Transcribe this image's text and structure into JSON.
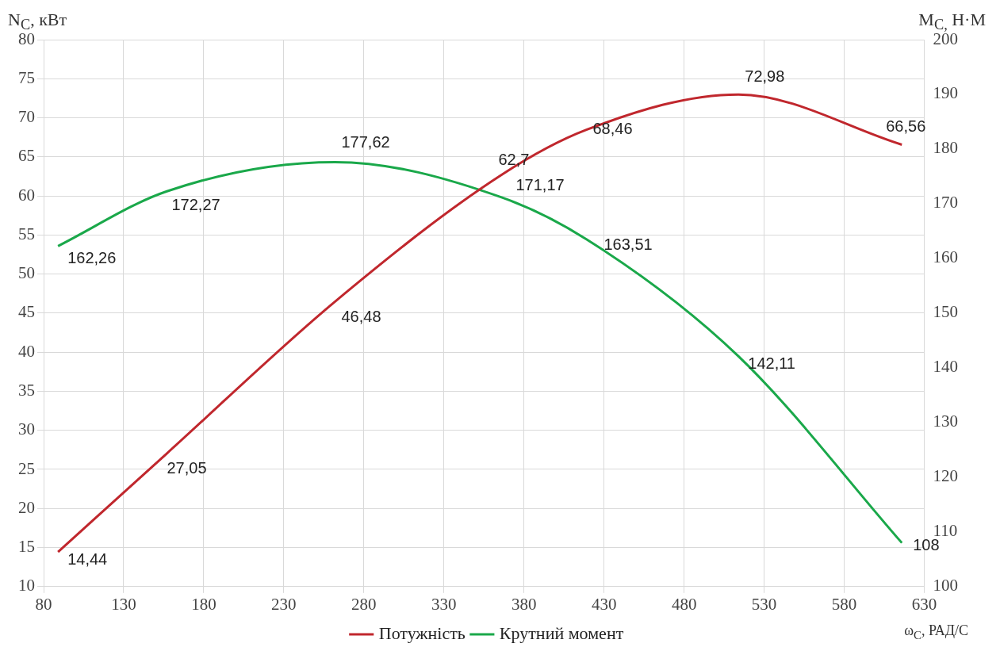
{
  "chart_data": {
    "type": "line",
    "ylabel": "N$_{C}$, кВт",
    "y2label": "M$_{C,}$ Н·М",
    "xlabel": "ω$_{C}$, РАД/С",
    "x": [
      89,
      157,
      262,
      366,
      419,
      514,
      616
    ],
    "xlim": [
      80,
      630
    ],
    "xticks": [
      80,
      130,
      180,
      230,
      280,
      330,
      380,
      430,
      480,
      530,
      580,
      630
    ],
    "ylim": [
      10,
      80
    ],
    "yticks": [
      10,
      15,
      20,
      25,
      30,
      35,
      40,
      45,
      50,
      55,
      60,
      65,
      70,
      75,
      80
    ],
    "y2lim": [
      100,
      200
    ],
    "y2ticks": [
      100,
      110,
      120,
      130,
      140,
      150,
      160,
      170,
      180,
      190,
      200
    ],
    "series": [
      {
        "name": "Потужність",
        "color": "#c0272d",
        "values": [
          14.44,
          27.05,
          46.48,
          62.7,
          68.46,
          72.98,
          66.56
        ],
        "value_labels": [
          "14,44",
          "27,05",
          "46,48",
          "62,7",
          "68,46",
          "72,98",
          "66,56"
        ]
      },
      {
        "name": "Крутний момент",
        "color": "#1aa84a",
        "axis": "y2",
        "values": [
          162.26,
          172.27,
          177.62,
          171.17,
          163.51,
          142.11,
          108
        ],
        "value_labels": [
          "162,26",
          "172,27",
          "177,62",
          "171,17",
          "163,51",
          "142,11",
          "108"
        ]
      }
    ],
    "grid": true,
    "legend": "bottom",
    "marker": "none",
    "line_style": "solid"
  }
}
